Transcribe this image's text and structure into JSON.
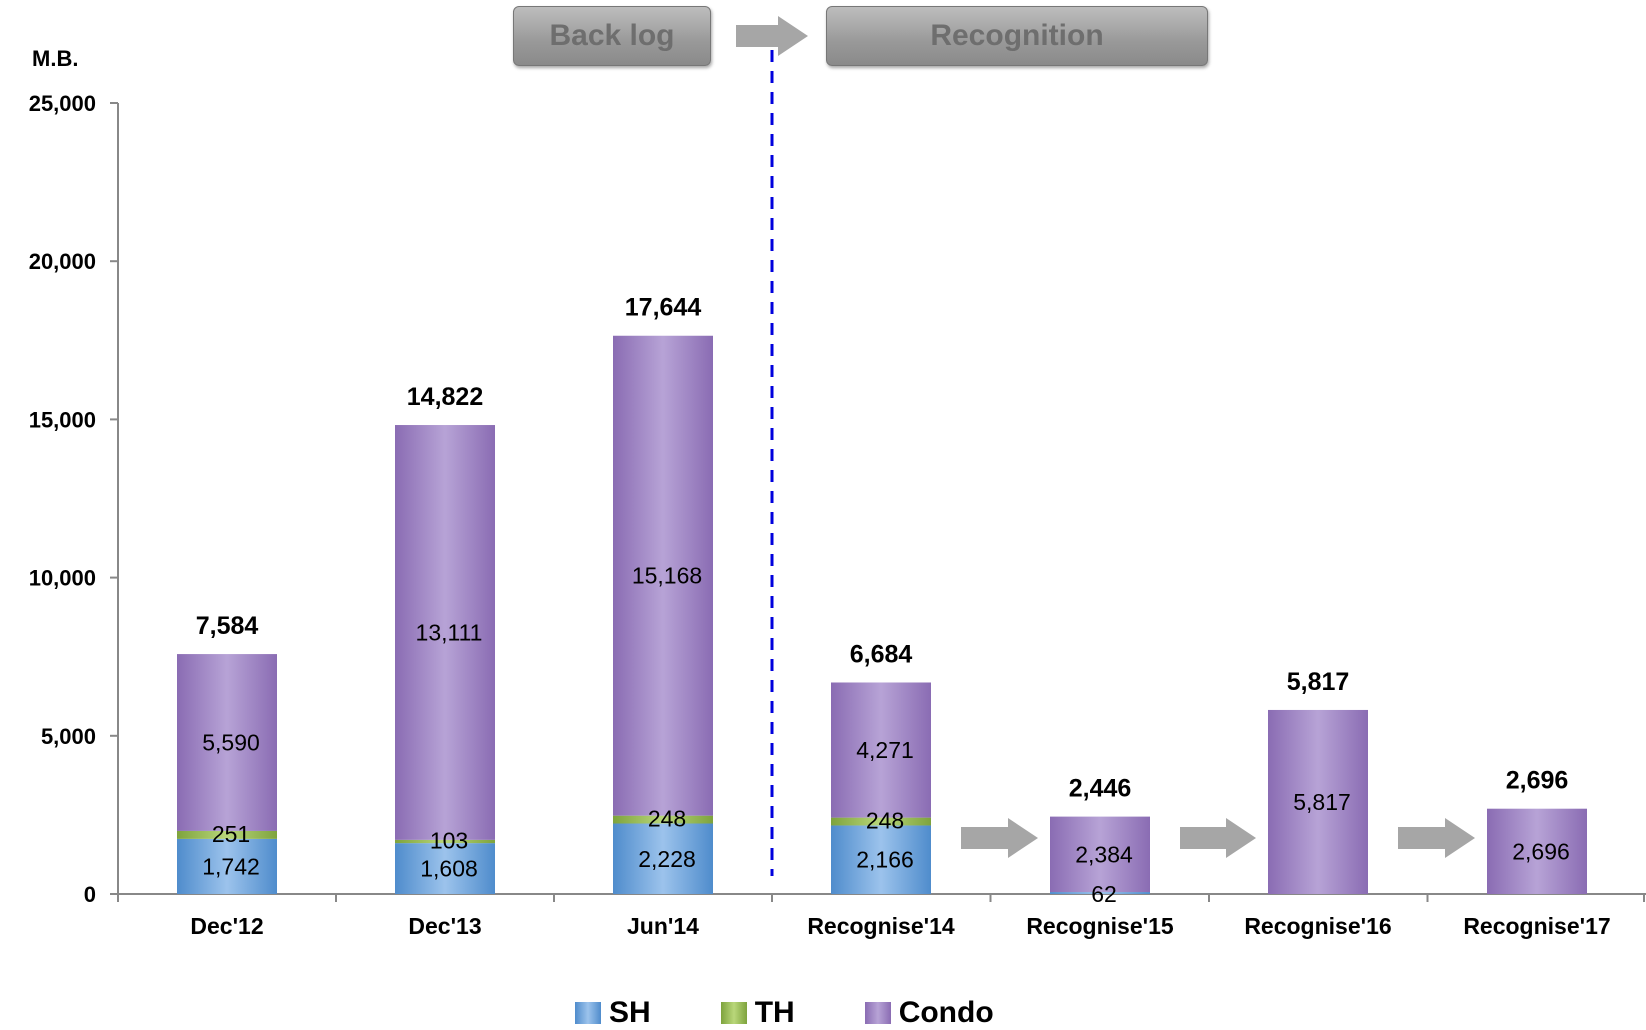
{
  "header": {
    "backlog_label": "Back log",
    "recognition_label": "Recognition"
  },
  "chart_data": {
    "type": "bar",
    "stacked": true,
    "unit_label": "M.B.",
    "categories": [
      "Dec'12",
      "Dec'13",
      "Jun'14",
      "Recognise'14",
      "Recognise'15",
      "Recognise'16",
      "Recognise'17"
    ],
    "series": [
      {
        "name": "SH",
        "values": [
          1742,
          1608,
          2228,
          2166,
          62,
          0,
          0
        ],
        "color": "#5b9bd5"
      },
      {
        "name": "TH",
        "values": [
          251,
          103,
          248,
          248,
          0,
          0,
          0
        ],
        "color": "#8db14a"
      },
      {
        "name": "Condo",
        "values": [
          5590,
          13111,
          15168,
          4271,
          2384,
          5817,
          2696
        ],
        "color": "#9b7fc0"
      }
    ],
    "segment_labels": {
      "SH": [
        "1,742",
        "1,608",
        "2,228",
        "2,166",
        "62",
        "",
        ""
      ],
      "TH": [
        "251",
        "103",
        "248",
        "248",
        "",
        "",
        ""
      ],
      "Condo": [
        "5,590",
        "13,111",
        "15,168",
        "4,271",
        "2,384",
        "5,817",
        "2,696"
      ]
    },
    "totals": [
      "7,584",
      "14,822",
      "17,644",
      "6,684",
      "2,446",
      "5,817",
      "2,696"
    ],
    "ylim": [
      0,
      25000
    ],
    "yticks": [
      0,
      5000,
      10000,
      15000,
      20000,
      25000
    ],
    "ytick_labels": [
      "0",
      "5,000",
      "10,000",
      "15,000",
      "20,000",
      "25,000"
    ],
    "divider_after_category": 2,
    "arrows_between": [
      [
        3,
        4
      ],
      [
        4,
        5
      ],
      [
        5,
        6
      ]
    ],
    "legend_position": "bottom",
    "grid": false
  }
}
